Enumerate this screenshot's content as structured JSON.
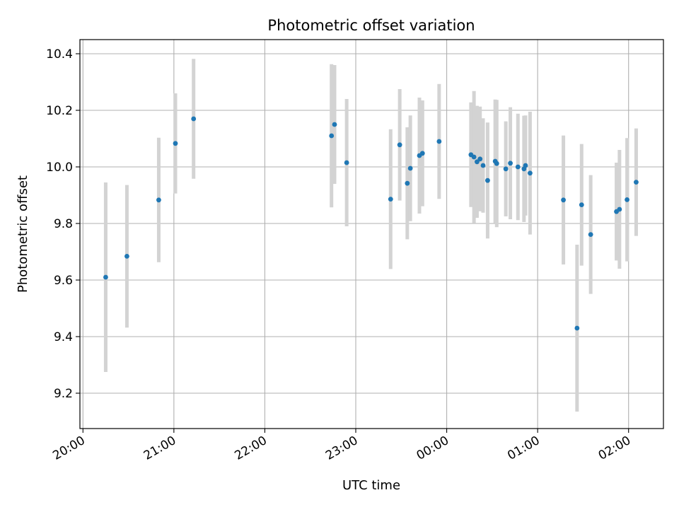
{
  "chart_data": {
    "type": "scatter",
    "title": "Photometric offset variation",
    "xlabel": "UTC time",
    "ylabel": "Photometric offset",
    "x_unit": "UTC time (HH:MM)",
    "xlim": [
      "19:58",
      "02:23"
    ],
    "ylim": [
      9.075,
      10.45
    ],
    "grid": true,
    "x_ticks": [
      "20:00",
      "21:00",
      "22:00",
      "23:00",
      "00:00",
      "01:00",
      "02:00"
    ],
    "y_ticks": [
      "9.2",
      "9.4",
      "9.6",
      "9.8",
      "10.0",
      "10.2",
      "10.4"
    ],
    "series": [
      {
        "point_color": "#1f77b4",
        "errorbar_color": "#d3d3d3",
        "points": [
          {
            "x": "20:15",
            "y": 9.61,
            "err": 0.335
          },
          {
            "x": "20:29",
            "y": 9.684,
            "err": 0.252
          },
          {
            "x": "20:50",
            "y": 9.883,
            "err": 0.22
          },
          {
            "x": "21:01",
            "y": 10.083,
            "err": 0.177
          },
          {
            "x": "21:13",
            "y": 10.17,
            "err": 0.212
          },
          {
            "x": "22:44",
            "y": 10.11,
            "err": 0.253
          },
          {
            "x": "22:46",
            "y": 10.15,
            "err": 0.21
          },
          {
            "x": "22:54",
            "y": 10.015,
            "err": 0.225
          },
          {
            "x": "23:23",
            "y": 9.886,
            "err": 0.247
          },
          {
            "x": "23:29",
            "y": 10.078,
            "err": 0.197
          },
          {
            "x": "23:34",
            "y": 9.942,
            "err": 0.198
          },
          {
            "x": "23:36",
            "y": 9.995,
            "err": 0.187
          },
          {
            "x": "23:42",
            "y": 10.04,
            "err": 0.205
          },
          {
            "x": "23:44",
            "y": 10.048,
            "err": 0.187
          },
          {
            "x": "23:55",
            "y": 10.09,
            "err": 0.203
          },
          {
            "x": "00:16",
            "y": 10.043,
            "err": 0.185
          },
          {
            "x": "00:18",
            "y": 10.035,
            "err": 0.233
          },
          {
            "x": "00:20",
            "y": 10.018,
            "err": 0.198
          },
          {
            "x": "00:22",
            "y": 10.028,
            "err": 0.185
          },
          {
            "x": "00:24",
            "y": 10.005,
            "err": 0.167
          },
          {
            "x": "00:27",
            "y": 9.952,
            "err": 0.205
          },
          {
            "x": "00:32",
            "y": 10.02,
            "err": 0.218
          },
          {
            "x": "00:33",
            "y": 10.012,
            "err": 0.225
          },
          {
            "x": "00:39",
            "y": 9.993,
            "err": 0.168
          },
          {
            "x": "00:42",
            "y": 10.013,
            "err": 0.198
          },
          {
            "x": "00:47",
            "y": 10.0,
            "err": 0.188
          },
          {
            "x": "00:51",
            "y": 9.993,
            "err": 0.188
          },
          {
            "x": "00:52",
            "y": 10.005,
            "err": 0.177
          },
          {
            "x": "00:55",
            "y": 9.978,
            "err": 0.217
          },
          {
            "x": "01:17",
            "y": 9.883,
            "err": 0.228
          },
          {
            "x": "01:26",
            "y": 9.43,
            "err": 0.295
          },
          {
            "x": "01:29",
            "y": 9.866,
            "err": 0.215
          },
          {
            "x": "01:35",
            "y": 9.761,
            "err": 0.21
          },
          {
            "x": "01:52",
            "y": 9.842,
            "err": 0.173
          },
          {
            "x": "01:54",
            "y": 9.85,
            "err": 0.21
          },
          {
            "x": "01:59",
            "y": 9.884,
            "err": 0.218
          },
          {
            "x": "02:05",
            "y": 9.946,
            "err": 0.19
          }
        ]
      }
    ]
  }
}
